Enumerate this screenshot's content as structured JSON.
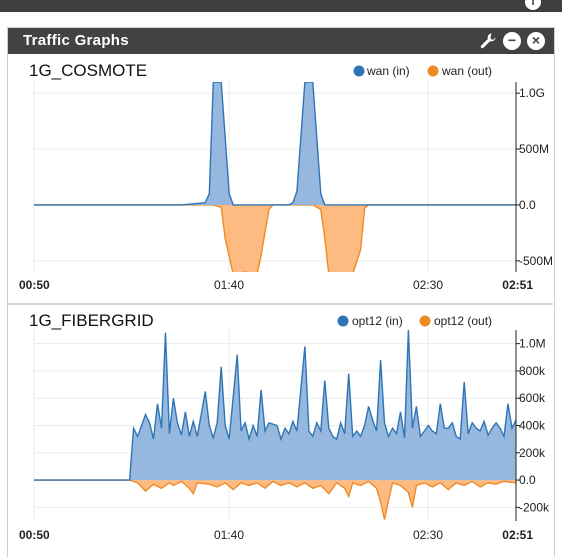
{
  "widget": {
    "title": "Traffic Graphs",
    "icons": [
      "wrench-icon",
      "minus-icon",
      "close-icon"
    ],
    "top_icon": "info-icon"
  },
  "colors": {
    "in": "#2e75b6",
    "in_fill": "#90b4dc",
    "out": "#f08a24",
    "out_fill": "#fdb77a",
    "header": "#424242"
  },
  "chart_data": [
    {
      "type": "area",
      "title": "1G_COSMOTE",
      "x_tick_labels": [
        "00:50",
        "01:40",
        "02:30",
        "02:51"
      ],
      "x_range": [
        "00:50",
        "02:51"
      ],
      "ylim": [
        -600000000,
        1100000000
      ],
      "y_ticks": [
        {
          "value": 1000000000,
          "label": "1.0G"
        },
        {
          "value": 500000000,
          "label": "500M"
        },
        {
          "value": 0,
          "label": "0.0"
        },
        {
          "value": -500000000,
          "label": "-500M"
        }
      ],
      "series": [
        {
          "name": "wan (in)",
          "points": [
            [
              "00:50",
              0
            ],
            [
              "01:27",
              0
            ],
            [
              "01:33",
              20000000
            ],
            [
              "01:34",
              100000000
            ],
            [
              "01:35",
              1100000000
            ],
            [
              "01:37",
              1100000000
            ],
            [
              "01:39",
              100000000
            ],
            [
              "01:40",
              0
            ],
            [
              "01:54",
              0
            ],
            [
              "01:55",
              20000000
            ],
            [
              "01:56",
              120000000
            ],
            [
              "01:58",
              1100000000
            ],
            [
              "02:00",
              1100000000
            ],
            [
              "02:02",
              100000000
            ],
            [
              "02:03",
              0
            ],
            [
              "02:51",
              0
            ]
          ]
        },
        {
          "name": "wan (out)",
          "points": [
            [
              "00:50",
              0
            ],
            [
              "01:35",
              0
            ],
            [
              "01:37",
              -20000000
            ],
            [
              "01:38",
              -300000000
            ],
            [
              "01:40",
              -620000000
            ],
            [
              "01:43",
              -600000000
            ],
            [
              "01:46",
              -620000000
            ],
            [
              "01:47",
              -450000000
            ],
            [
              "01:49",
              -40000000
            ],
            [
              "01:50",
              0
            ],
            [
              "02:00",
              0
            ],
            [
              "02:02",
              -40000000
            ],
            [
              "02:03",
              -300000000
            ],
            [
              "02:04",
              -620000000
            ],
            [
              "02:10",
              -620000000
            ],
            [
              "02:12",
              -400000000
            ],
            [
              "02:13",
              -30000000
            ],
            [
              "02:14",
              0
            ],
            [
              "02:51",
              0
            ]
          ]
        }
      ]
    },
    {
      "type": "area",
      "title": "1G_FIBERGRID",
      "x_tick_labels": [
        "00:50",
        "01:40",
        "02:30",
        "02:51"
      ],
      "x_range": [
        "00:50",
        "02:51"
      ],
      "ylim": [
        -300000,
        1100000
      ],
      "y_ticks": [
        {
          "value": 1000000,
          "label": "1.0M"
        },
        {
          "value": 800000,
          "label": "800k"
        },
        {
          "value": 600000,
          "label": "600k"
        },
        {
          "value": 400000,
          "label": "400k"
        },
        {
          "value": 200000,
          "label": "200k"
        },
        {
          "value": 0,
          "label": "0.0"
        },
        {
          "value": -200000,
          "label": "-200k"
        }
      ],
      "series": [
        {
          "name": "opt12 (in)",
          "points": [
            [
              "00:50",
              0
            ],
            [
              "01:14",
              0
            ],
            [
              "01:15",
              380000
            ],
            [
              "01:16",
              320000
            ],
            [
              "01:17",
              400000
            ],
            [
              "01:18",
              480000
            ],
            [
              "01:19",
              420000
            ],
            [
              "01:20",
              300000
            ],
            [
              "01:21",
              560000
            ],
            [
              "01:22",
              380000
            ],
            [
              "01:23",
              1080000
            ],
            [
              "01:24",
              340000
            ],
            [
              "01:25",
              600000
            ],
            [
              "01:26",
              420000
            ],
            [
              "01:27",
              330000
            ],
            [
              "01:28",
              500000
            ],
            [
              "01:29",
              320000
            ],
            [
              "01:30",
              430000
            ],
            [
              "01:31",
              320000
            ],
            [
              "01:33",
              650000
            ],
            [
              "01:34",
              400000
            ],
            [
              "01:35",
              310000
            ],
            [
              "01:36",
              420000
            ],
            [
              "01:37",
              830000
            ],
            [
              "01:38",
              400000
            ],
            [
              "01:39",
              300000
            ],
            [
              "01:41",
              920000
            ],
            [
              "01:42",
              360000
            ],
            [
              "01:43",
              420000
            ],
            [
              "01:44",
              300000
            ],
            [
              "01:45",
              400000
            ],
            [
              "01:46",
              320000
            ],
            [
              "01:47",
              660000
            ],
            [
              "01:48",
              360000
            ],
            [
              "01:49",
              420000
            ],
            [
              "01:51",
              400000
            ],
            [
              "01:52",
              300000
            ],
            [
              "01:53",
              380000
            ],
            [
              "01:54",
              340000
            ],
            [
              "01:55",
              430000
            ],
            [
              "01:56",
              360000
            ],
            [
              "01:58",
              980000
            ],
            [
              "01:59",
              360000
            ],
            [
              "02:00",
              320000
            ],
            [
              "02:01",
              420000
            ],
            [
              "02:02",
              360000
            ],
            [
              "02:03",
              730000
            ],
            [
              "02:04",
              380000
            ],
            [
              "02:05",
              320000
            ],
            [
              "02:06",
              300000
            ],
            [
              "02:07",
              420000
            ],
            [
              "02:08",
              340000
            ],
            [
              "02:09",
              780000
            ],
            [
              "02:10",
              320000
            ],
            [
              "02:11",
              360000
            ],
            [
              "02:12",
              320000
            ],
            [
              "02:13",
              400000
            ],
            [
              "02:14",
              540000
            ],
            [
              "02:15",
              440000
            ],
            [
              "02:16",
              360000
            ],
            [
              "02:17",
              880000
            ],
            [
              "02:18",
              420000
            ],
            [
              "02:19",
              320000
            ],
            [
              "02:20",
              380000
            ],
            [
              "02:21",
              340000
            ],
            [
              "02:22",
              500000
            ],
            [
              "02:23",
              310000
            ],
            [
              "02:24",
              1100000
            ],
            [
              "02:25",
              380000
            ],
            [
              "02:26",
              540000
            ],
            [
              "02:27",
              320000
            ],
            [
              "02:28",
              360000
            ],
            [
              "02:29",
              400000
            ],
            [
              "02:30",
              360000
            ],
            [
              "02:31",
              340000
            ],
            [
              "02:32",
              560000
            ],
            [
              "02:33",
              380000
            ],
            [
              "02:34",
              380000
            ],
            [
              "02:35",
              420000
            ],
            [
              "02:36",
              320000
            ],
            [
              "02:37",
              300000
            ],
            [
              "02:38",
              720000
            ],
            [
              "02:39",
              340000
            ],
            [
              "02:40",
              420000
            ],
            [
              "02:41",
              380000
            ],
            [
              "02:42",
              360000
            ],
            [
              "02:43",
              430000
            ],
            [
              "02:44",
              330000
            ],
            [
              "02:45",
              380000
            ],
            [
              "02:46",
              420000
            ],
            [
              "02:47",
              380000
            ],
            [
              "02:48",
              320000
            ],
            [
              "02:49",
              560000
            ],
            [
              "02:50",
              380000
            ],
            [
              "02:51",
              440000
            ]
          ]
        },
        {
          "name": "opt12 (out)",
          "points": [
            [
              "00:50",
              0
            ],
            [
              "01:14",
              0
            ],
            [
              "01:16",
              -20000
            ],
            [
              "01:18",
              -80000
            ],
            [
              "01:20",
              -30000
            ],
            [
              "01:22",
              -60000
            ],
            [
              "01:24",
              -20000
            ],
            [
              "01:25",
              -40000
            ],
            [
              "01:27",
              -10000
            ],
            [
              "01:29",
              -60000
            ],
            [
              "01:30",
              -100000
            ],
            [
              "01:31",
              -20000
            ],
            [
              "01:34",
              -30000
            ],
            [
              "01:36",
              -50000
            ],
            [
              "01:38",
              -20000
            ],
            [
              "01:40",
              -70000
            ],
            [
              "01:42",
              -20000
            ],
            [
              "01:44",
              -40000
            ],
            [
              "01:46",
              -20000
            ],
            [
              "01:48",
              -60000
            ],
            [
              "01:50",
              -10000
            ],
            [
              "01:52",
              -40000
            ],
            [
              "01:54",
              -20000
            ],
            [
              "01:56",
              -50000
            ],
            [
              "01:58",
              -20000
            ],
            [
              "02:00",
              -60000
            ],
            [
              "02:02",
              -40000
            ],
            [
              "02:04",
              -100000
            ],
            [
              "02:06",
              -20000
            ],
            [
              "02:08",
              -60000
            ],
            [
              "02:09",
              -120000
            ],
            [
              "02:10",
              -20000
            ],
            [
              "02:12",
              -40000
            ],
            [
              "02:14",
              -10000
            ],
            [
              "02:16",
              -60000
            ],
            [
              "02:17",
              -160000
            ],
            [
              "02:18",
              -290000
            ],
            [
              "02:19",
              -150000
            ],
            [
              "02:20",
              -20000
            ],
            [
              "02:22",
              -40000
            ],
            [
              "02:24",
              -90000
            ],
            [
              "02:25",
              -200000
            ],
            [
              "02:26",
              -40000
            ],
            [
              "02:28",
              -20000
            ],
            [
              "02:30",
              -50000
            ],
            [
              "02:32",
              -20000
            ],
            [
              "02:34",
              -70000
            ],
            [
              "02:36",
              -20000
            ],
            [
              "02:38",
              -40000
            ],
            [
              "02:40",
              -10000
            ],
            [
              "02:42",
              -50000
            ],
            [
              "02:44",
              -20000
            ],
            [
              "02:46",
              -30000
            ],
            [
              "02:48",
              -10000
            ],
            [
              "02:51",
              -20000
            ]
          ]
        }
      ]
    }
  ]
}
